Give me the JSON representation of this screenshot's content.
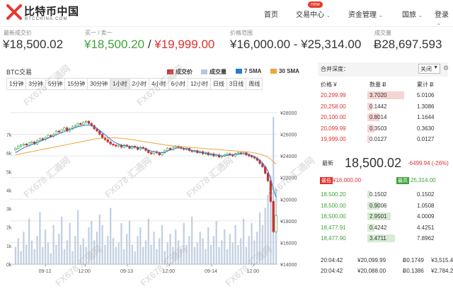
{
  "header": {
    "brand": "比特币中国",
    "brand_sub": "BTCCHINA.COM",
    "nav": [
      {
        "label": "首页",
        "chevron": false
      },
      {
        "label": "交易中心",
        "chevron": true
      },
      {
        "label": "资金管理",
        "chevron": true
      },
      {
        "label": "国旅",
        "chevron": true
      },
      {
        "label": "登录",
        "chevron": true
      }
    ],
    "new_badge": "new"
  },
  "ticker": {
    "last_label": "最新成交价",
    "last_value": "¥18,500.02",
    "bidask_label": "买一 / 卖一",
    "bid_value": "¥18,500.20",
    "sep": " / ",
    "ask_value": "¥19,999.00",
    "range_label": "价格范围",
    "range_value": "¥16,000.00 - ¥25,314.00",
    "volume_label": "成交量",
    "volume_value": "Ƀ28,697.593"
  },
  "chart": {
    "title": "BTC交易",
    "legend": [
      {
        "label": "成交价",
        "color": "#c9322f"
      },
      {
        "label": "成交量",
        "color": "#b7c8de"
      },
      {
        "label": "7 SMA",
        "color": "#2a7ad1"
      },
      {
        "label": "30 SMA",
        "color": "#f0a43a"
      }
    ],
    "timeframes": [
      "1分钟",
      "3分钟",
      "5分钟",
      "15分钟",
      "30分钟",
      "1小时",
      "2小时",
      "4小时",
      "6小时",
      "12小时",
      "日线",
      "3日线",
      "周线"
    ],
    "active_timeframe": "1小时"
  },
  "chart_data": {
    "type": "candlestick",
    "x_ticks": [
      "09-12",
      "12:00",
      "09-13",
      "12:00",
      "09-14",
      "12:00"
    ],
    "price_axis": {
      "ticks": [
        "¥28000",
        "¥26000",
        "¥24000",
        "¥22000",
        "¥20000",
        "¥18000",
        "¥16000",
        "¥14000"
      ],
      "range": [
        14000,
        28000
      ]
    },
    "volume_axis": {
      "ticks": [
        "7k",
        "6k",
        "5k",
        "4k",
        "3k",
        "2k",
        "1k",
        "0k"
      ],
      "range": [
        0,
        7000
      ]
    },
    "close": [
      24700,
      24900,
      25000,
      25100,
      25000,
      25200,
      25300,
      25100,
      25400,
      25600,
      25500,
      25700,
      25900,
      25800,
      26000,
      26300,
      26200,
      26400,
      26600,
      26300,
      26500,
      26700,
      26800,
      27000,
      26900,
      27100,
      27200,
      27000,
      26800,
      26500,
      26300,
      26000,
      25700,
      25500,
      25300,
      25100,
      25000,
      24900,
      25000,
      24800,
      25000,
      24900,
      24700,
      24900,
      24800,
      24600,
      24800,
      24700,
      24500,
      24300,
      24200,
      24400,
      24300,
      24100,
      24300,
      24500,
      24700,
      24600,
      24800,
      24900,
      24800,
      24700,
      24600,
      24700,
      24500,
      24400,
      24500,
      24300,
      24400,
      24200,
      24300,
      24100,
      24200,
      24000,
      24100,
      23900,
      24000,
      24100,
      24200,
      24100,
      24000,
      24200,
      24300,
      24200,
      24300,
      24100,
      24000,
      23900,
      23800,
      23600,
      23300,
      23000,
      22400,
      21700,
      19800,
      17000,
      18500
    ],
    "sma7": [
      24300,
      24450,
      24600,
      24750,
      24850,
      24950,
      25050,
      25150,
      25250,
      25350,
      25450,
      25550,
      25650,
      25750,
      25850,
      25950,
      26050,
      26150,
      26250,
      26350,
      26450,
      26550,
      26600,
      26700,
      26750,
      26800,
      26850,
      26850,
      26800,
      26700,
      26550,
      26350,
      26150,
      25950,
      25750,
      25550,
      25350,
      25200,
      25100,
      25000,
      24950,
      24900,
      24850,
      24850,
      24800,
      24750,
      24750,
      24700,
      24650,
      24550,
      24450,
      24400,
      24350,
      24300,
      24300,
      24350,
      24450,
      24550,
      24600,
      24700,
      24750,
      24750,
      24700,
      24650,
      24600,
      24500,
      24450,
      24400,
      24350,
      24300,
      24250,
      24200,
      24150,
      24100,
      24100,
      24050,
      24000,
      24000,
      24050,
      24100,
      24100,
      24150,
      24150,
      24200,
      24200,
      24200,
      24150,
      24050,
      23950,
      23800,
      23600,
      23350,
      23000,
      22600,
      21900,
      20900,
      20200
    ],
    "sma30": [
      24100,
      24150,
      24200,
      24250,
      24300,
      24350,
      24400,
      24450,
      24500,
      24550,
      24600,
      24650,
      24700,
      24750,
      24800,
      24850,
      24900,
      24950,
      25000,
      25050,
      25100,
      25150,
      25200,
      25250,
      25300,
      25350,
      25400,
      25450,
      25500,
      25550,
      25600,
      25620,
      25640,
      25660,
      25670,
      25680,
      25680,
      25670,
      25650,
      25630,
      25600,
      25570,
      25540,
      25500,
      25460,
      25420,
      25380,
      25340,
      25300,
      25260,
      25220,
      25180,
      25140,
      25100,
      25060,
      25020,
      24990,
      24960,
      24930,
      24900,
      24880,
      24860,
      24840,
      24820,
      24800,
      24780,
      24760,
      24740,
      24720,
      24700,
      24680,
      24660,
      24640,
      24620,
      24600,
      24580,
      24560,
      24540,
      24520,
      24500,
      24480,
      24460,
      24440,
      24420,
      24400,
      24380,
      24350,
      24320,
      24280,
      24230,
      24170,
      24100,
      24000,
      23880,
      23700,
      23450,
      23250
    ],
    "volume": [
      800,
      1200,
      600,
      1500,
      900,
      2100,
      1100,
      700,
      1300,
      2400,
      800,
      1600,
      1000,
      500,
      1800,
      900,
      1400,
      2200,
      700,
      1100,
      1900,
      600,
      1300,
      2500,
      900,
      1200,
      800,
      1700,
      2000,
      1100,
      1500,
      2300,
      1800,
      900,
      1300,
      2600,
      1200,
      800,
      1000,
      1900,
      700,
      1400,
      2000,
      900,
      600,
      1300,
      1700,
      800,
      1100,
      2100,
      900,
      1500,
      700,
      1200,
      1800,
      600,
      1000,
      1400,
      800,
      1600,
      1100,
      700,
      1900,
      900,
      1300,
      2200,
      800,
      1000,
      1500,
      1200,
      700,
      1700,
      900,
      1300,
      2000,
      800,
      1100,
      1600,
      700,
      1400,
      1000,
      1800,
      900,
      1200,
      2100,
      800,
      1300,
      1900,
      1100,
      1500,
      2400,
      1800,
      2600,
      3200,
      4100,
      6800,
      3500
    ]
  },
  "depth": {
    "title": "合并深度：",
    "select_value": "关闭",
    "columns": [
      "价格 ¥",
      "数量 Ƀ",
      "累计 Ƀ"
    ],
    "asks": [
      {
        "price": "20,299.99",
        "qty": "3.7020",
        "cum": "5.0106",
        "fill": 0.95
      },
      {
        "price": "20,258.00",
        "qty": "0.1442",
        "cum": "1.3086",
        "fill": 0.12
      },
      {
        "price": "20,100.00",
        "qty": "0.8014",
        "cum": "1.1644",
        "fill": 0.3
      },
      {
        "price": "20,099.99",
        "qty": "0.3503",
        "cum": "0.3630",
        "fill": 0.18
      },
      {
        "price": "19,999.00",
        "qty": "0.0127",
        "cum": "0.0127",
        "fill": 0.05
      }
    ],
    "last_label": "最新",
    "last_price": "18,500.02",
    "last_change": "-6499.94 (-26%)",
    "high_tag": "最低",
    "high_value": "¥16,000.00",
    "low_tag": "最高",
    "low_value": "25,314.00",
    "bids": [
      {
        "price": "18,500.20",
        "qty": "0.1502",
        "cum": "0.1502",
        "fill": 0.08
      },
      {
        "price": "18,500.00",
        "qty": "0.9006",
        "cum": "1.0508",
        "fill": 0.3
      },
      {
        "price": "18,500.00",
        "qty": "2.9501",
        "cum": "4.0009",
        "fill": 0.6
      },
      {
        "price": "18,477.91",
        "qty": "0.4242",
        "cum": "4.4251",
        "fill": 0.18
      },
      {
        "price": "18,477.90",
        "qty": "3.4711",
        "cum": "7.8962",
        "fill": 0.7
      }
    ],
    "trades": [
      {
        "time": "20:04:42",
        "price": "¥20,099.99",
        "amount": "Ƀ0.1749",
        "total": "¥3,515.49"
      },
      {
        "time": "20:04:42",
        "price": "¥20,088.00",
        "amount": "Ƀ0.1386",
        "total": "¥2,784.20"
      }
    ]
  },
  "watermark": "FX678 汇通网"
}
